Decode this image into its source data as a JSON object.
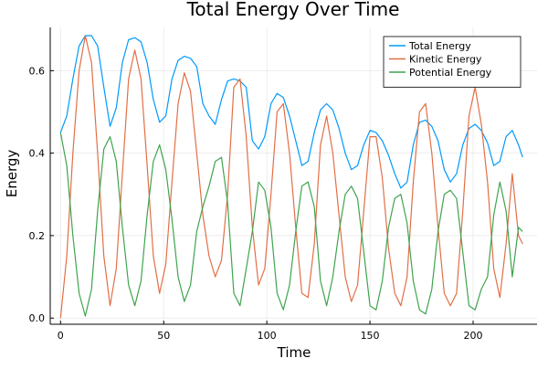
{
  "chart_data": {
    "type": "line",
    "title": "Total Energy Over Time",
    "xlabel": "Time",
    "ylabel": "Energy",
    "xlim": [
      -5,
      231
    ],
    "ylim": [
      -0.015,
      0.705
    ],
    "xticks": [
      0,
      50,
      100,
      150,
      200
    ],
    "yticks": [
      0.0,
      0.2,
      0.4,
      0.6
    ],
    "xtick_labels": [
      "0",
      "50",
      "100",
      "150",
      "200"
    ],
    "ytick_labels": [
      "0.0",
      "0.2",
      "0.4",
      "0.6"
    ],
    "grid": true,
    "legend_position": "top-right",
    "series": [
      {
        "name": "Total Energy",
        "color": "#009AFA",
        "x": [
          0,
          3,
          6,
          9,
          12,
          15,
          18,
          21,
          24,
          27,
          30,
          33,
          36,
          39,
          42,
          45,
          48,
          51,
          54,
          57,
          60,
          63,
          66,
          69,
          72,
          75,
          78,
          81,
          84,
          87,
          90,
          93,
          96,
          99,
          102,
          105,
          108,
          111,
          114,
          117,
          120,
          123,
          126,
          129,
          132,
          135,
          138,
          141,
          144,
          147,
          150,
          153,
          156,
          159,
          162,
          165,
          168,
          171,
          174,
          177,
          180,
          183,
          186,
          189,
          192,
          195,
          198,
          201,
          204,
          207,
          210,
          213,
          216,
          219,
          222,
          224
        ],
        "values": [
          0.45,
          0.49,
          0.58,
          0.66,
          0.685,
          0.685,
          0.66,
          0.56,
          0.465,
          0.51,
          0.62,
          0.675,
          0.68,
          0.67,
          0.62,
          0.53,
          0.475,
          0.49,
          0.58,
          0.625,
          0.635,
          0.63,
          0.61,
          0.52,
          0.49,
          0.47,
          0.53,
          0.575,
          0.58,
          0.575,
          0.56,
          0.43,
          0.41,
          0.44,
          0.52,
          0.545,
          0.535,
          0.49,
          0.43,
          0.37,
          0.38,
          0.45,
          0.505,
          0.52,
          0.505,
          0.46,
          0.4,
          0.36,
          0.37,
          0.42,
          0.455,
          0.45,
          0.43,
          0.395,
          0.35,
          0.315,
          0.33,
          0.42,
          0.475,
          0.48,
          0.465,
          0.43,
          0.36,
          0.33,
          0.35,
          0.42,
          0.46,
          0.47,
          0.455,
          0.425,
          0.37,
          0.38,
          0.44,
          0.455,
          0.42,
          0.39
        ]
      },
      {
        "name": "Kinetic Energy",
        "color": "#E26F46",
        "x": [
          0,
          3,
          6,
          9,
          12,
          15,
          18,
          21,
          24,
          27,
          30,
          33,
          36,
          39,
          42,
          45,
          48,
          51,
          54,
          57,
          60,
          63,
          66,
          69,
          72,
          75,
          78,
          81,
          84,
          87,
          90,
          93,
          96,
          99,
          102,
          105,
          108,
          111,
          114,
          117,
          120,
          123,
          126,
          129,
          132,
          135,
          138,
          141,
          144,
          147,
          150,
          153,
          156,
          159,
          162,
          165,
          168,
          171,
          174,
          177,
          180,
          183,
          186,
          189,
          192,
          195,
          198,
          201,
          204,
          207,
          210,
          213,
          216,
          219,
          222,
          224
        ],
        "values": [
          0.0,
          0.15,
          0.4,
          0.6,
          0.685,
          0.62,
          0.4,
          0.15,
          0.03,
          0.12,
          0.35,
          0.58,
          0.65,
          0.58,
          0.37,
          0.15,
          0.06,
          0.13,
          0.33,
          0.52,
          0.595,
          0.55,
          0.4,
          0.25,
          0.15,
          0.1,
          0.14,
          0.3,
          0.56,
          0.58,
          0.44,
          0.22,
          0.08,
          0.12,
          0.3,
          0.5,
          0.52,
          0.4,
          0.22,
          0.06,
          0.05,
          0.18,
          0.42,
          0.49,
          0.4,
          0.25,
          0.1,
          0.04,
          0.08,
          0.26,
          0.44,
          0.44,
          0.34,
          0.17,
          0.06,
          0.03,
          0.1,
          0.33,
          0.5,
          0.52,
          0.4,
          0.22,
          0.06,
          0.03,
          0.06,
          0.26,
          0.49,
          0.56,
          0.47,
          0.33,
          0.12,
          0.05,
          0.18,
          0.35,
          0.2,
          0.18
        ]
      },
      {
        "name": "Potential Energy",
        "color": "#3EA44E",
        "x": [
          0,
          3,
          6,
          9,
          12,
          15,
          18,
          21,
          24,
          27,
          30,
          33,
          36,
          39,
          42,
          45,
          48,
          51,
          54,
          57,
          60,
          63,
          66,
          69,
          72,
          75,
          78,
          81,
          84,
          87,
          90,
          93,
          96,
          99,
          102,
          105,
          108,
          111,
          114,
          117,
          120,
          123,
          126,
          129,
          132,
          135,
          138,
          141,
          144,
          147,
          150,
          153,
          156,
          159,
          162,
          165,
          168,
          171,
          174,
          177,
          180,
          183,
          186,
          189,
          192,
          195,
          198,
          201,
          204,
          207,
          210,
          213,
          216,
          219,
          222,
          224
        ],
        "values": [
          0.45,
          0.37,
          0.2,
          0.06,
          0.005,
          0.07,
          0.26,
          0.41,
          0.44,
          0.38,
          0.22,
          0.08,
          0.03,
          0.09,
          0.25,
          0.38,
          0.42,
          0.36,
          0.24,
          0.1,
          0.04,
          0.08,
          0.21,
          0.27,
          0.32,
          0.38,
          0.39,
          0.28,
          0.06,
          0.03,
          0.12,
          0.21,
          0.33,
          0.31,
          0.22,
          0.06,
          0.02,
          0.08,
          0.21,
          0.32,
          0.33,
          0.27,
          0.09,
          0.03,
          0.1,
          0.21,
          0.3,
          0.32,
          0.29,
          0.16,
          0.03,
          0.02,
          0.09,
          0.22,
          0.29,
          0.3,
          0.23,
          0.09,
          0.02,
          0.01,
          0.07,
          0.21,
          0.3,
          0.31,
          0.29,
          0.16,
          0.03,
          0.02,
          0.07,
          0.1,
          0.25,
          0.33,
          0.26,
          0.1,
          0.22,
          0.21
        ]
      }
    ]
  }
}
